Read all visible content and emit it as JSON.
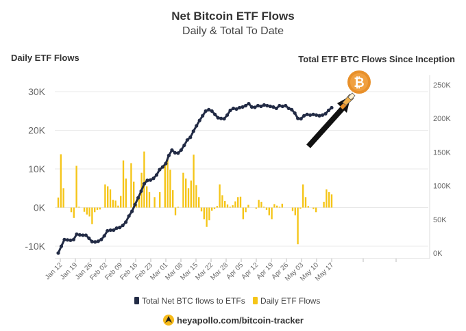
{
  "chart_data": {
    "type": "bar+line",
    "title": "Net Bitcoin ETF Flows",
    "subtitle": "Daily & Total To Date",
    "y_left_label": "Daily ETF Flows",
    "y_right_label": "Total ETF BTC Flows Since Inception",
    "y_left_ticks": [
      "30K",
      "20K",
      "10K",
      "0K",
      "-10K"
    ],
    "y_right_ticks": [
      "250K",
      "200K",
      "150K",
      "100K",
      "50K",
      "0K"
    ],
    "y_left_range": [
      -12000,
      35000
    ],
    "y_right_range": [
      0,
      250000
    ],
    "x_tick_labels": [
      "Jan 12",
      "Jan 19",
      "Jan 26",
      "Feb 02",
      "Feb 09",
      "Feb 16",
      "Feb 23",
      "Mar 01",
      "Mar 08",
      "Mar 15",
      "Mar 22",
      "Mar 28",
      "Apr 05",
      "Apr 12",
      "Apr 19",
      "Apr 26",
      "May 03",
      "May 10",
      "May 17"
    ],
    "grid": true,
    "legend_placement": "bottom",
    "series": [
      {
        "name": "Total Net BTC flows to ETFs",
        "type": "line",
        "axis": "right",
        "color": "#222b45",
        "values": [
          0,
          10000,
          20000,
          19500,
          19000,
          20000,
          28000,
          27000,
          26500,
          26500,
          22000,
          17000,
          16500,
          17500,
          20000,
          25500,
          33000,
          34000,
          34000,
          37000,
          38000,
          41000,
          46000,
          55000,
          62000,
          72000,
          82000,
          92000,
          103000,
          108000,
          108500,
          111000,
          116000,
          124000,
          128000,
          133000,
          145000,
          153000,
          149000,
          148500,
          153000,
          160000,
          168000,
          172000,
          181000,
          189000,
          197000,
          204000,
          211000,
          213000,
          211000,
          206000,
          201000,
          200000,
          199500,
          205000,
          212000,
          215000,
          214000,
          216000,
          217000,
          219000,
          222000,
          217000,
          216500,
          219000,
          218000,
          220000,
          219000,
          218000,
          217000,
          215000,
          219000,
          218000,
          219000,
          215000,
          213000,
          208000,
          200000,
          199500,
          204000,
          206000,
          205000,
          206000,
          205000,
          204000,
          205000,
          207000,
          212000,
          216000
        ]
      },
      {
        "name": "Daily ETF Flows",
        "type": "bar",
        "axis": "left",
        "color": "#f5c518",
        "values": [
          2600,
          13800,
          5000,
          0,
          0,
          -1200,
          -2700,
          10800,
          200,
          0,
          -1100,
          -1800,
          -2300,
          -4300,
          -1200,
          -600,
          -500,
          0,
          6000,
          5500,
          4700,
          2000,
          1800,
          500,
          3000,
          12200,
          7500,
          0,
          11500,
          6700,
          800,
          2500,
          9000,
          14500,
          5500,
          4000,
          0,
          2700,
          0,
          4000,
          0,
          11500,
          13000,
          9800,
          4500,
          -2000,
          200,
          0,
          9000,
          7500,
          5000,
          7000,
          13700,
          5800,
          2700,
          -1000,
          -3000,
          -5000,
          -3300,
          -800,
          -400,
          400,
          6000,
          3200,
          1700,
          800,
          200,
          600,
          1600,
          2700,
          2800,
          -3000,
          -1200,
          700,
          0,
          0,
          -300,
          2000,
          1500,
          200,
          -600,
          -2000,
          -3000,
          900,
          500,
          200,
          1000,
          0,
          0,
          0,
          -900,
          -2000,
          -9500,
          -300,
          6000,
          2700,
          400,
          0,
          -400,
          -1200,
          0,
          0,
          1500,
          4700,
          4000,
          3400
        ]
      }
    ]
  },
  "legend": {
    "line_label": "Total Net BTC flows to ETFs",
    "bar_label": "Daily ETF Flows"
  },
  "footer": {
    "text": "heyapollo.com/bitcoin-tracker"
  },
  "colors": {
    "line": "#222b45",
    "bar": "#f5c518",
    "grid": "#e8e8e8",
    "coin": "#e8902a",
    "arrow": "#111111"
  },
  "icons": {
    "coin": "bitcoin-coin-icon",
    "arrow": "arrow-icon",
    "footer": "apollo-logo-icon"
  }
}
